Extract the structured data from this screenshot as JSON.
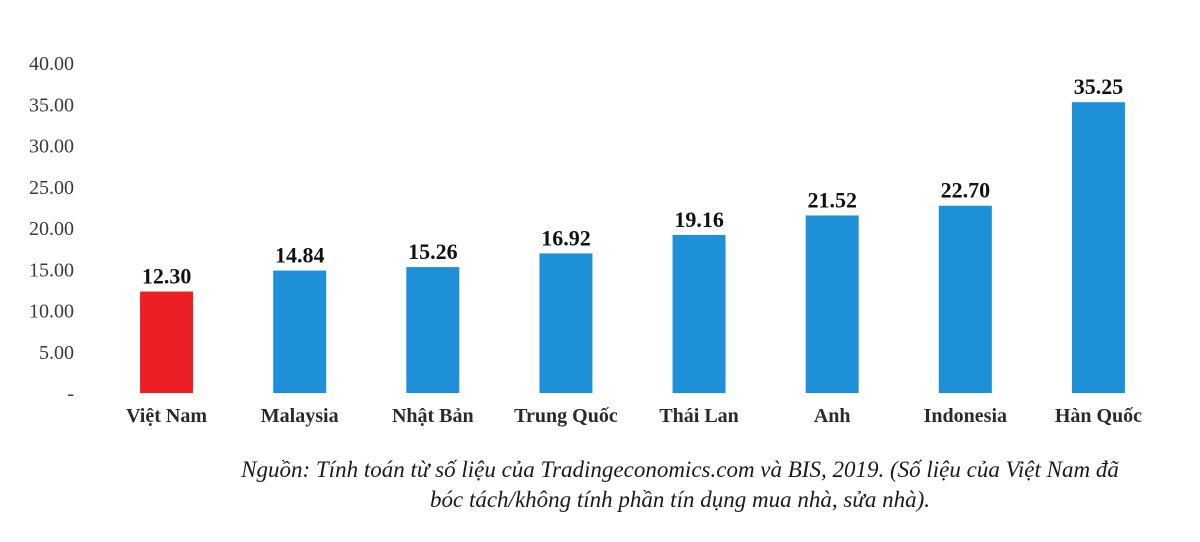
{
  "chart_data": {
    "type": "bar",
    "categories": [
      "Việt Nam",
      "Malaysia",
      "Nhật Bản",
      "Trung Quốc",
      "Thái Lan",
      "Anh",
      "Indonesia",
      "Hàn Quốc"
    ],
    "values": [
      12.3,
      14.84,
      15.26,
      16.92,
      19.16,
      21.52,
      22.7,
      35.25
    ],
    "value_labels": [
      "12.30",
      "14.84",
      "15.26",
      "16.92",
      "19.16",
      "21.52",
      "22.70",
      "35.25"
    ],
    "bar_colors": [
      "#ec1f27",
      "#1e90d8",
      "#1e90d8",
      "#1e90d8",
      "#1e90d8",
      "#1e90d8",
      "#1e90d8",
      "#1e90d8"
    ],
    "yticks": [
      0,
      5,
      10,
      15,
      20,
      25,
      30,
      35,
      40
    ],
    "ytick_labels": [
      "-",
      "5.00",
      "10.00",
      "15.00",
      "20.00",
      "25.00",
      "30.00",
      "35.00",
      "40.00"
    ],
    "ylim": [
      0,
      40
    ],
    "grid": false,
    "legend": "none"
  },
  "source_note": {
    "line1": "Nguồn: Tính toán từ số liệu của Tradingeconomics.com và BIS, 2019. (Số liệu của Việt Nam đã",
    "line2": "bóc tách/không tính phần tín dụng mua nhà, sửa nhà)."
  }
}
